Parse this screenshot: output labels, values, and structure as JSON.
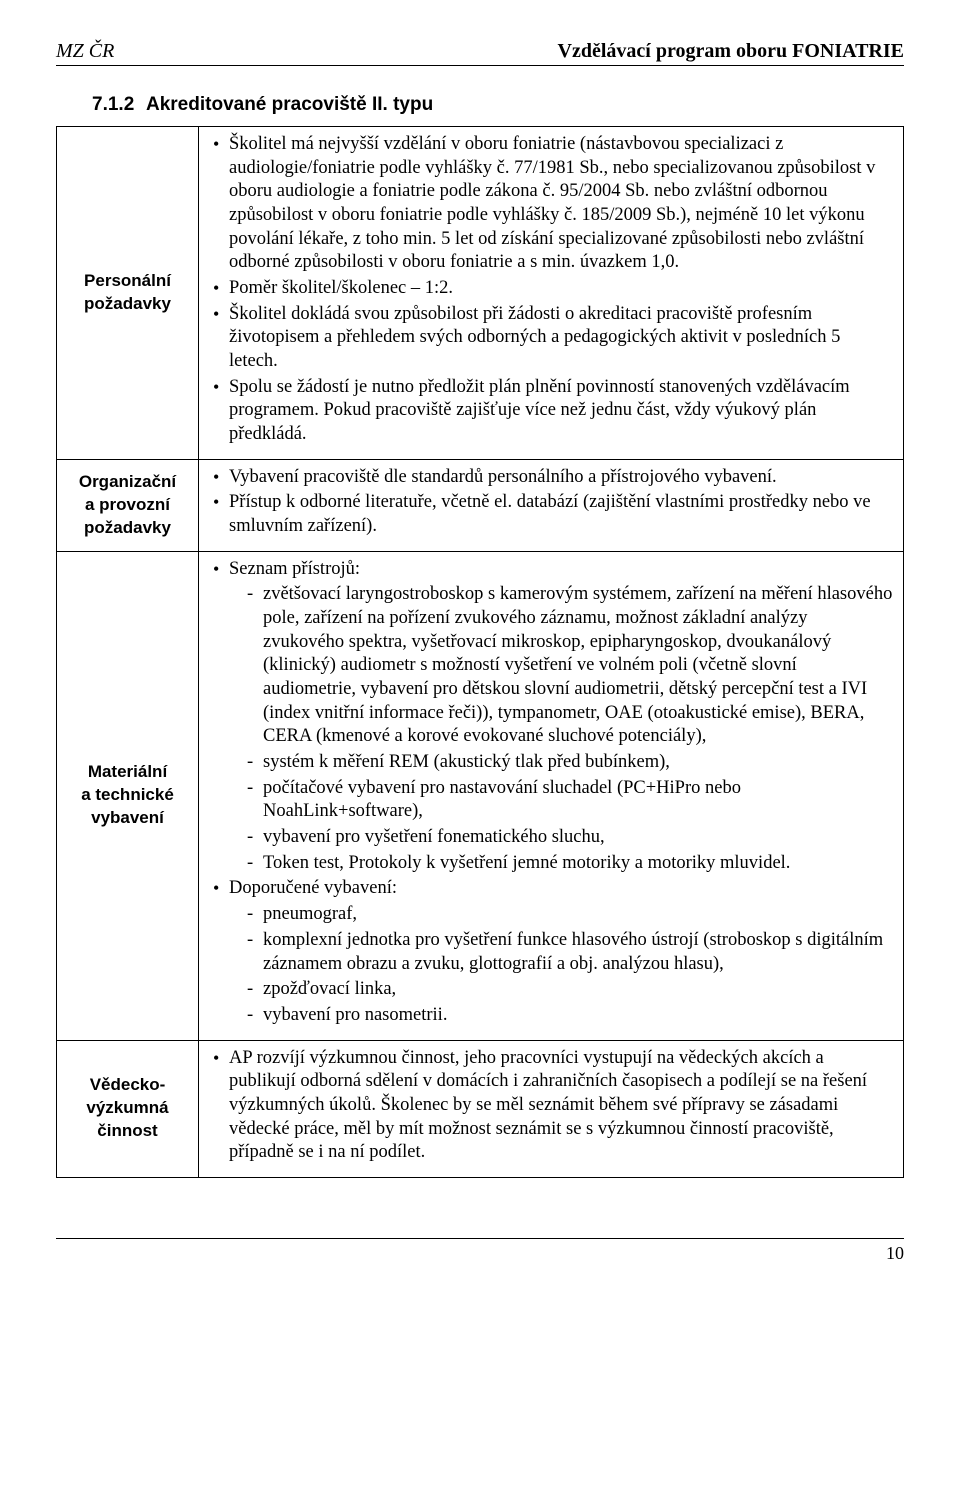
{
  "header": {
    "left": "MZ ČR",
    "right": "Vzdělávací program oboru FONIATRIE"
  },
  "section": {
    "number": "7.1.2",
    "title": "Akreditované pracoviště II. typu"
  },
  "rows": {
    "personal": {
      "label": "Personální\npožadavky",
      "items": [
        "Školitel má nejvyšší vzdělání v oboru foniatrie (nástavbovou specializaci z audiologie/foniatrie podle vyhlášky č. 77/1981 Sb., nebo specializovanou způsobilost v oboru audiologie a foniatrie podle zákona č. 95/2004 Sb. nebo zvláštní odbornou způsobilost v oboru foniatrie podle vyhlášky č. 185/2009 Sb.), nejméně 10 let výkonu povolání lékaře, z toho min. 5 let od získání specializované způsobilosti nebo zvláštní odborné způsobilosti v oboru foniatrie a s min. úvazkem 1,0.",
        "Poměr školitel/školenec – 1:2.",
        "Školitel dokládá svou způsobilost při žádosti o akreditaci pracoviště profesním životopisem a přehledem svých odborných a pedagogických aktivit v posledních 5 letech.",
        "Spolu se žádostí je nutno předložit plán plnění povinností stanovených vzdělávacím programem. Pokud pracoviště zajišťuje více než jednu část, vždy výukový plán předkládá."
      ]
    },
    "org": {
      "label": "Organizační\na provozní\npožadavky",
      "items": [
        "Vybavení pracoviště dle standardů personálního a přístrojového vybavení.",
        "Přístup k odborné literatuře, včetně el. databází (zajištění vlastními prostředky nebo ve smluvním zařízení)."
      ]
    },
    "material": {
      "label": "Materiální\na technické\nvybavení",
      "seznam_label": "Seznam přístrojů:",
      "seznam_items": [
        "zvětšovací laryngostroboskop s kamerovým systémem, zařízení na měření hlasového pole, zařízení na pořízení zvukového záznamu, možnost základní analýzy zvukového spektra, vyšetřovací mikroskop, epipharyngoskop, dvoukanálový (klinický) audiometr s možností vyšetření ve volném poli (včetně slovní audiometrie, vybavení pro dětskou slovní audiometrii, dětský percepční test a IVI (index vnitřní informace řeči)), tympanometr, OAE (otoakustické emise), BERA, CERA (kmenové a korové evokované sluchové potenciály),",
        "systém k měření REM (akustický tlak před bubínkem),",
        "počítačové vybavení pro nastavování sluchadel (PC+HiPro nebo NoahLink+software),",
        "vybavení pro vyšetření fonematického sluchu,",
        "Token test, Protokoly k vyšetření jemné motoriky a motoriky mluvidel."
      ],
      "doporucene_label": "Doporučené vybavení:",
      "doporucene_items": [
        "pneumograf,",
        "komplexní jednotka pro vyšetření funkce hlasového ústrojí (stroboskop s digitálním záznamem obrazu a zvuku, glottografií a obj. analýzou hlasu),",
        "zpožďovací linka,",
        "vybavení pro nasometrii."
      ]
    },
    "vedecko": {
      "label": "Vědecko-\nvýzkumná\nčinnost",
      "items": [
        "AP rozvíjí výzkumnou činnost, jeho pracovníci vystupují na vědeckých akcích a publikují odborná sdělení v domácích i zahraničních časopisech a podílejí se na řešení výzkumných úkolů. Školenec by se měl seznámit během své přípravy se zásadami vědecké práce, měl by mít možnost seznámit se s výzkumnou činností pracoviště, případně se i na ní podílet."
      ]
    }
  },
  "footer": {
    "page": "10"
  }
}
